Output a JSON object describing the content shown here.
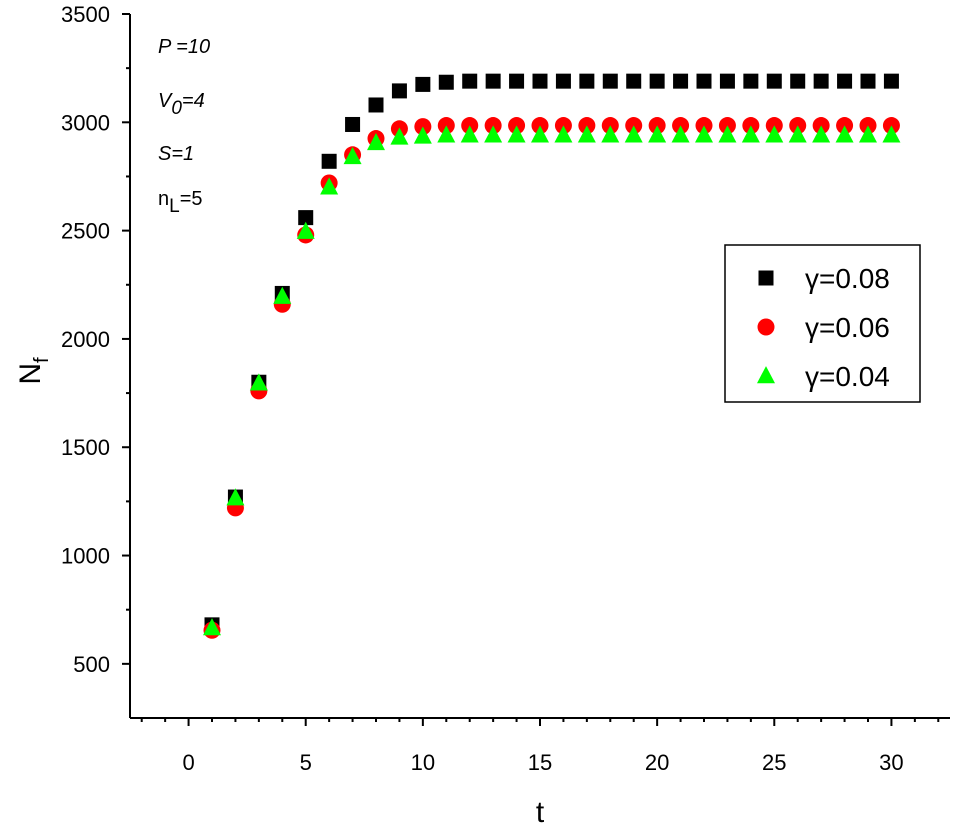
{
  "chart_data": {
    "type": "scatter",
    "xlabel": "t",
    "ylabel_main": "N",
    "ylabel_sub": "f",
    "xlim": [
      -2.5,
      32.5
    ],
    "ylim": [
      250,
      3500
    ],
    "x_ticks": [
      0,
      5,
      10,
      15,
      20,
      25,
      30
    ],
    "y_ticks": [
      500,
      1000,
      1500,
      2000,
      2500,
      3000,
      3500
    ],
    "grid": false,
    "legend_position": "right",
    "annotations": [
      {
        "main": "P =10",
        "sub": "",
        "italic": true
      },
      {
        "main": "V",
        "sub": "0",
        "tail": "=4",
        "italic": true
      },
      {
        "main": "S=1",
        "sub": "",
        "italic": true
      },
      {
        "main": "n",
        "sub": "L",
        "tail": "=5",
        "italic": false
      }
    ],
    "x": [
      1,
      2,
      3,
      4,
      5,
      6,
      7,
      8,
      9,
      10,
      11,
      12,
      13,
      14,
      15,
      16,
      17,
      18,
      19,
      20,
      21,
      22,
      23,
      24,
      25,
      26,
      27,
      28,
      29,
      30
    ],
    "series": [
      {
        "name": "γ=0.08",
        "marker": "square",
        "color": "#000000",
        "values": [
          680,
          1270,
          1800,
          2210,
          2560,
          2820,
          2990,
          3080,
          3145,
          3175,
          3185,
          3190,
          3190,
          3190,
          3190,
          3190,
          3190,
          3190,
          3190,
          3190,
          3190,
          3190,
          3190,
          3190,
          3190,
          3190,
          3190,
          3190,
          3190,
          3190
        ]
      },
      {
        "name": "γ=0.06",
        "marker": "circle",
        "color": "#ff0000",
        "values": [
          655,
          1220,
          1760,
          2160,
          2480,
          2720,
          2850,
          2925,
          2970,
          2980,
          2985,
          2985,
          2985,
          2985,
          2985,
          2985,
          2985,
          2985,
          2985,
          2985,
          2985,
          2985,
          2985,
          2985,
          2985,
          2985,
          2985,
          2985,
          2985,
          2985
        ]
      },
      {
        "name": "γ=0.04",
        "marker": "triangle",
        "color": "#00ff00",
        "values": [
          665,
          1265,
          1795,
          2195,
          2495,
          2700,
          2840,
          2905,
          2930,
          2935,
          2940,
          2940,
          2940,
          2940,
          2940,
          2940,
          2940,
          2940,
          2940,
          2940,
          2940,
          2940,
          2940,
          2940,
          2940,
          2940,
          2940,
          2940,
          2940,
          2940
        ]
      }
    ]
  }
}
